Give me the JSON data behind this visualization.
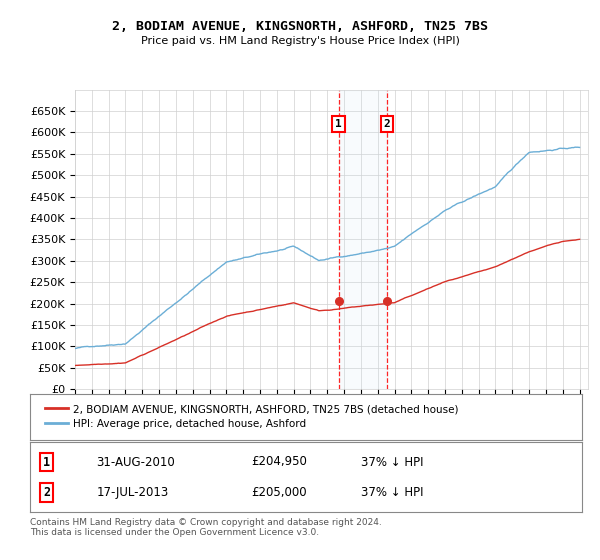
{
  "title": "2, BODIAM AVENUE, KINGSNORTH, ASHFORD, TN25 7BS",
  "subtitle": "Price paid vs. HM Land Registry's House Price Index (HPI)",
  "hpi_color": "#6baed6",
  "price_color": "#d73027",
  "sale1_date_num": 2010.667,
  "sale1_price": 204950,
  "sale1_text": "31-AUG-2010",
  "sale1_pct": "37% ↓ HPI",
  "sale2_date_num": 2013.542,
  "sale2_price": 205000,
  "sale2_text": "17-JUL-2013",
  "sale2_pct": "37% ↓ HPI",
  "legend_label1": "2, BODIAM AVENUE, KINGSNORTH, ASHFORD, TN25 7BS (detached house)",
  "legend_label2": "HPI: Average price, detached house, Ashford",
  "footer": "Contains HM Land Registry data © Crown copyright and database right 2024.\nThis data is licensed under the Open Government Licence v3.0.",
  "ylim_min": 0,
  "ylim_max": 700000,
  "ytick_max": 650000,
  "start_year": 1995.0,
  "end_year": 2025.5,
  "bg_color": "#f0f4f8"
}
